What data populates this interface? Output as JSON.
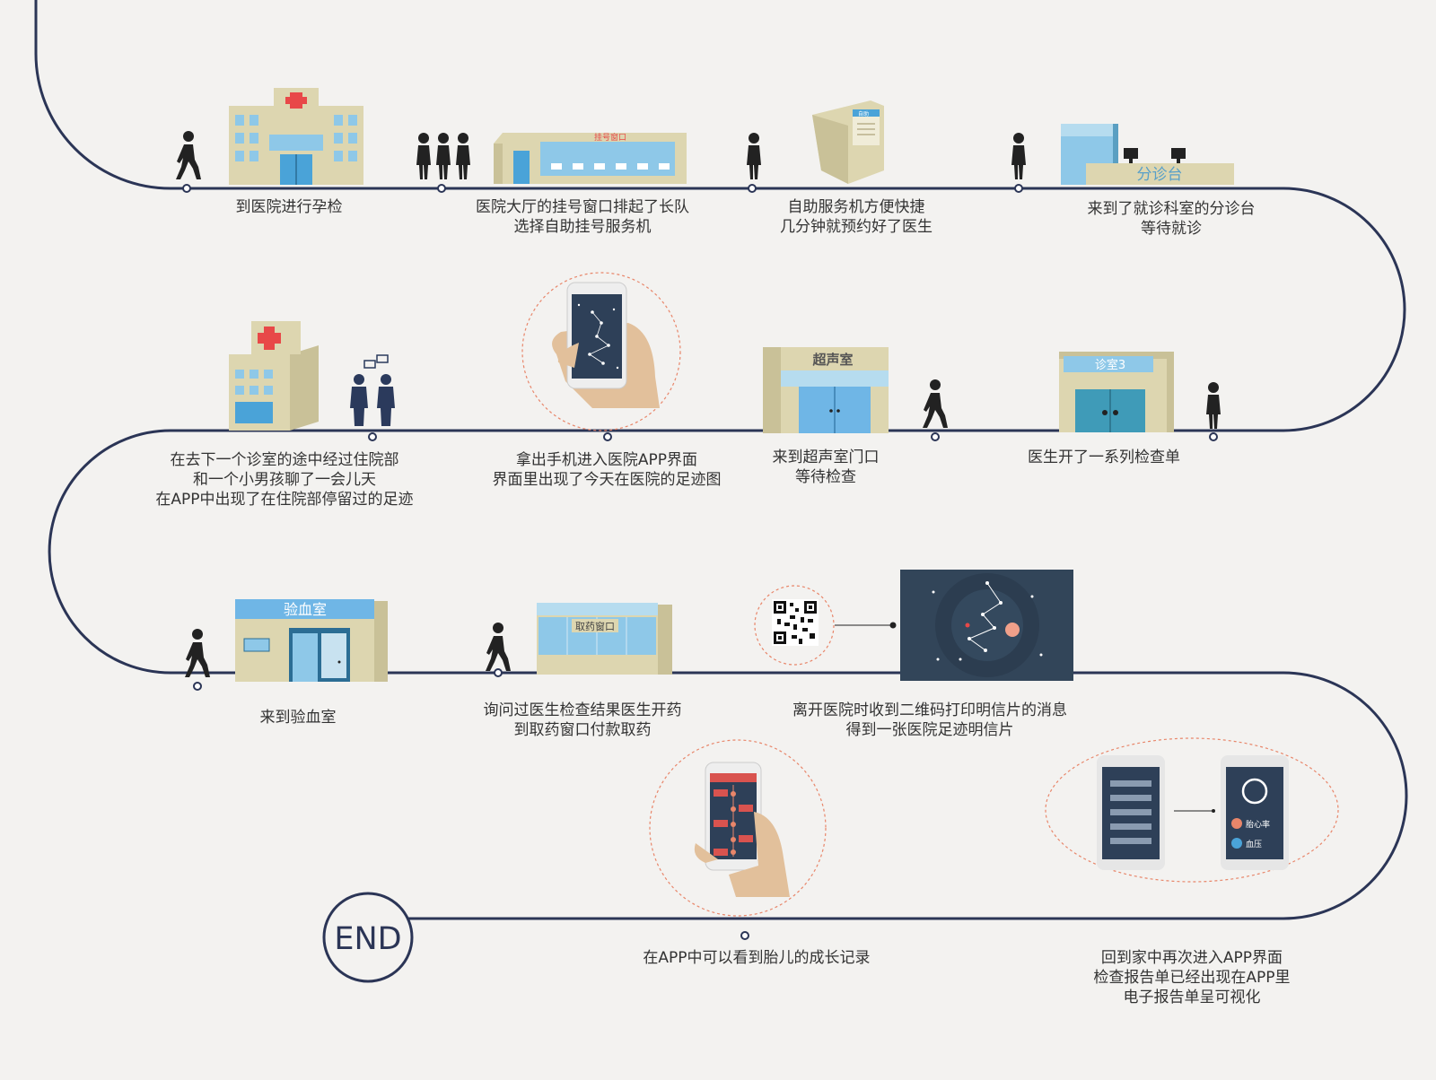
{
  "colors": {
    "path": "#2b3556",
    "building_wall": "#ddd6b0",
    "building_side": "#c9c198",
    "window_blue": "#8ec8e8",
    "door_blue": "#4aa3d8",
    "person": "#222222",
    "dashed_circle": "#e8866a",
    "phone_screen": "#2e4058",
    "skin": "#e2c09b",
    "postcard_bg": "#324559",
    "accent_red": "#e84848"
  },
  "end_label": "END",
  "signs": {
    "registration_window": "挂号窗口",
    "triage_desk": "分诊台",
    "ultrasound_room": "超声室",
    "clinic_room": "诊室3",
    "blood_test_room": "验血室",
    "pharmacy_window": "取药窗口",
    "self_service_kiosk": "自助",
    "fetal_heart_rate": "胎心率",
    "blood_pressure": "血压"
  },
  "steps": [
    {
      "id": "hospital-arrival",
      "caption": "到医院进行孕检"
    },
    {
      "id": "registration-queue",
      "caption": "医院大厅的挂号窗口排起了长队\n选择自助挂号服务机"
    },
    {
      "id": "self-service-kiosk",
      "caption": "自助服务机方便快捷\n几分钟就预约好了医生"
    },
    {
      "id": "triage-desk",
      "caption": "来到了就诊科室的分诊台\n等待就诊"
    },
    {
      "id": "inpatient-building",
      "caption": "在去下一个诊室的途中经过住院部\n和一个小男孩聊了一会儿天\n在APP中出现了在住院部停留过的足迹"
    },
    {
      "id": "hospital-app",
      "caption": "拿出手机进入医院APP界面\n界面里出现了今天在医院的足迹图"
    },
    {
      "id": "ultrasound",
      "caption": "来到超声室门口\n等待检查"
    },
    {
      "id": "clinic-exam-orders",
      "caption": "医生开了一系列检查单"
    },
    {
      "id": "blood-test",
      "caption": "来到验血室"
    },
    {
      "id": "pharmacy",
      "caption": "询问过医生检查结果医生开药\n到取药窗口付款取药"
    },
    {
      "id": "postcard",
      "caption": "离开医院时收到二维码打印明信片的消息\n得到一张医院足迹明信片"
    },
    {
      "id": "report-visualization",
      "caption": "回到家中再次进入APP界面\n检查报告单已经出现在APP里\n电子报告单呈可视化"
    },
    {
      "id": "growth-record",
      "caption": "在APP中可以看到胎儿的成长记录"
    }
  ]
}
